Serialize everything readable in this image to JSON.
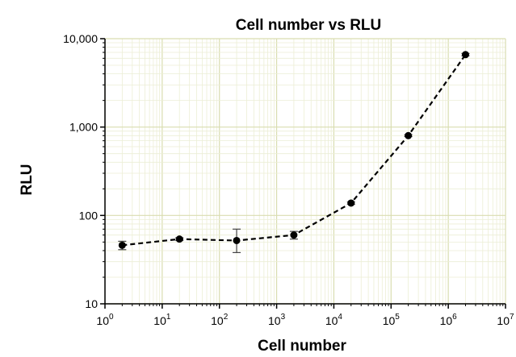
{
  "chart_data": {
    "type": "scatter",
    "title": "Cell number vs RLU",
    "xlabel": "Cell number",
    "ylabel": "RLU",
    "x_scale": "log",
    "y_scale": "log",
    "xlim": [
      1,
      10000000
    ],
    "ylim": [
      10,
      10000
    ],
    "grid": true,
    "x_ticks": [
      {
        "value": 1,
        "base": "10",
        "exp": "0"
      },
      {
        "value": 10,
        "base": "10",
        "exp": "1"
      },
      {
        "value": 100,
        "base": "10",
        "exp": "2"
      },
      {
        "value": 1000,
        "base": "10",
        "exp": "3"
      },
      {
        "value": 10000,
        "base": "10",
        "exp": "4"
      },
      {
        "value": 100000,
        "base": "10",
        "exp": "5"
      },
      {
        "value": 1000000,
        "base": "10",
        "exp": "6"
      },
      {
        "value": 10000000,
        "base": "10",
        "exp": "7"
      }
    ],
    "y_ticks": [
      {
        "value": 10,
        "label": "10"
      },
      {
        "value": 100,
        "label": "100"
      },
      {
        "value": 1000,
        "label": "1,000"
      },
      {
        "value": 10000,
        "label": "10,000"
      }
    ],
    "series": [
      {
        "line_style": "dashed",
        "marker": "circle",
        "color": "#000000",
        "points": [
          {
            "x": 2,
            "y": 46,
            "err_low": 41,
            "err_high": 51
          },
          {
            "x": 20,
            "y": 54,
            "err_low": 52,
            "err_high": 56
          },
          {
            "x": 200,
            "y": 52,
            "err_low": 38,
            "err_high": 70
          },
          {
            "x": 2000,
            "y": 60,
            "err_low": 54,
            "err_high": 66
          },
          {
            "x": 20000,
            "y": 138,
            "err_low": 134,
            "err_high": 142
          },
          {
            "x": 200000,
            "y": 800,
            "err_low": 780,
            "err_high": 820
          },
          {
            "x": 2000000,
            "y": 6600,
            "err_low": 6400,
            "err_high": 6800
          }
        ]
      }
    ],
    "colors": {
      "grid_major": "#d9ddb0",
      "grid_minor": "#eceed5",
      "axis": "#000000"
    }
  }
}
